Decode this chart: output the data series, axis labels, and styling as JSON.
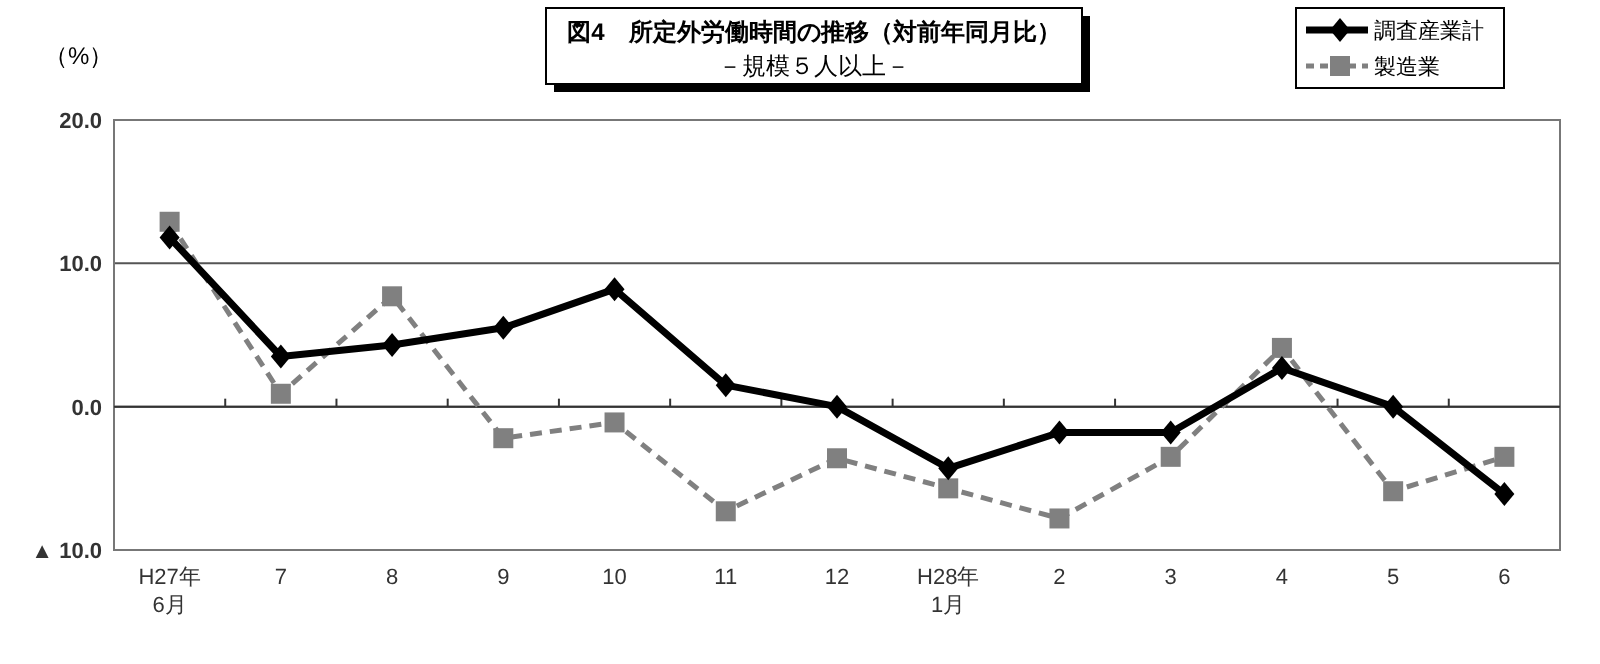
{
  "chart_data": {
    "type": "line",
    "title": "図4　所定外労働時間の推移（対前年同月比）",
    "subtitle": "－規模５人以上－",
    "ylabel": "（%）",
    "categories": [
      "H27年\n6月",
      "7",
      "8",
      "9",
      "10",
      "11",
      "12",
      "H28年\n1月",
      "2",
      "3",
      "4",
      "5",
      "6"
    ],
    "series": [
      {
        "name": "調査産業計",
        "color": "#000000",
        "marker": "diamond",
        "line_style": "solid",
        "values": [
          11.8,
          3.5,
          4.3,
          5.5,
          8.2,
          1.5,
          0.0,
          -4.3,
          -1.8,
          -1.8,
          2.7,
          0.0,
          -6.1
        ]
      },
      {
        "name": "製造業",
        "color": "#808080",
        "marker": "square",
        "line_style": "dashed",
        "values": [
          12.9,
          0.9,
          7.7,
          -2.2,
          -1.1,
          -7.3,
          -3.6,
          -5.7,
          -7.8,
          -3.5,
          4.1,
          -5.9,
          -3.5
        ]
      }
    ],
    "ylim": [
      -10,
      20
    ],
    "yticks": [
      {
        "value": 20,
        "label": "20.0"
      },
      {
        "value": 10,
        "label": "10.0"
      },
      {
        "value": 0,
        "label": "0.0"
      },
      {
        "value": -10,
        "label": "▲ 10.0"
      }
    ],
    "grid": "y",
    "legend": "top right"
  }
}
